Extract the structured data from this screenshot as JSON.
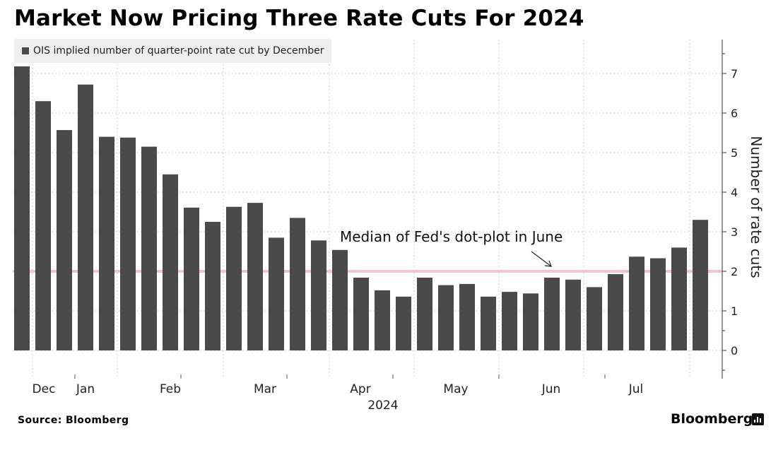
{
  "title": "Market Now Pricing Three Rate Cuts For 2024",
  "legend": "OIS implied number of quarter-point rate cut by December",
  "source": "Source: Bloomberg",
  "brand": "Bloomberg",
  "annotation": "Median of Fed's dot-plot in June",
  "colors": {
    "bar": "#4a4a4a",
    "reference_line": "#f2c4d0",
    "grid": "#cccccc"
  },
  "chart_data": {
    "type": "bar",
    "categories": [
      "",
      "",
      "",
      "",
      "",
      "",
      "",
      "",
      "",
      "",
      "",
      "",
      "",
      "",
      "",
      "",
      "",
      "",
      "",
      "",
      "",
      "",
      "",
      "",
      "",
      "",
      "",
      "",
      "",
      "",
      "",
      "",
      ""
    ],
    "series": [
      {
        "name": "OIS implied number of quarter-point rate cut by December",
        "values": [
          7.18,
          6.3,
          5.57,
          6.72,
          5.4,
          5.38,
          5.15,
          4.45,
          3.61,
          3.25,
          3.63,
          3.73,
          2.85,
          3.35,
          2.78,
          2.54,
          1.84,
          1.52,
          1.36,
          1.84,
          1.65,
          1.68,
          1.36,
          1.48,
          1.44,
          1.84,
          1.79,
          1.6,
          1.93,
          2.37,
          2.33,
          2.6,
          3.3
        ]
      }
    ],
    "x_tick_labels": [
      "Dec",
      "Jan",
      "Feb",
      "Mar",
      "Apr",
      "May",
      "Jun",
      "Jul"
    ],
    "x_secondary_label": "2024",
    "ylabel": "Number of rate cuts",
    "y_ticks": [
      0,
      1,
      2,
      3,
      4,
      5,
      6,
      7
    ],
    "ylim": [
      -0.7,
      7.8
    ],
    "y_axis_side": "right",
    "reference_line": {
      "value": 2,
      "label": "Median of Fed's dot-plot in June"
    },
    "grid": true,
    "legend_position": "top-left"
  }
}
